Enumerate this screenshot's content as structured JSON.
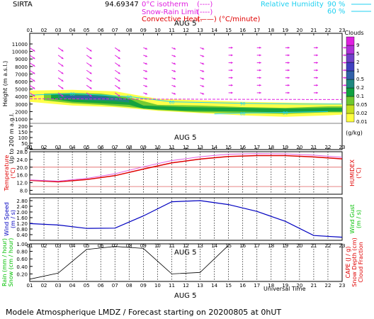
{
  "header": {
    "station": "SIRTA",
    "coords": "94.69347",
    "isotherm_label": "0°C isotherm",
    "isotherm_legend": "(----)",
    "snow_rain_label": "Snow-Rain Limit",
    "snow_rain_legend": "(----)",
    "convective_label": "Convective Heat.",
    "convective_legend": "(——) (°C/minute)",
    "rh_label": "Relative Humidity",
    "rh_90": "90 %",
    "rh_60": "60 %"
  },
  "hours": [
    "01",
    "02",
    "03",
    "04",
    "05",
    "06",
    "07",
    "08",
    "09",
    "10",
    "11",
    "12",
    "13",
    "14",
    "15",
    "16",
    "17",
    "18",
    "19",
    "20",
    "21",
    "22",
    "23"
  ],
  "date_label": "AUG  5",
  "footer": {
    "universal_time": "Universal Time",
    "forecast": "Modele Atmospherique LMDZ / Forecast starting on 20200805 at 0hUT"
  },
  "colors": {
    "magenta": "#e020e0",
    "cyan": "#20d0f0",
    "red": "#e00000",
    "blue": "#0000c0",
    "green": "#00c000"
  },
  "chart_data": [
    {
      "type": "heatmap",
      "name": "clouds",
      "ylabel": "Height  (m a.s.l.)",
      "ylabel_small": "Up to 200 m a.g.l.",
      "y_ticks_upper": [
        1000,
        2000,
        3000,
        4000,
        5000,
        6000,
        7000,
        8000,
        9000,
        10000,
        11000
      ],
      "y_ticks_lower": [
        0,
        50,
        100,
        150,
        200
      ],
      "ylim": [
        0,
        11800
      ],
      "colorbar": {
        "title": "Clouds",
        "unit": "(g/kg)",
        "levels": [
          "0.01",
          "0.02",
          "0.05",
          "0.1",
          "0.2",
          "0.5",
          "1",
          "2",
          "5",
          "9"
        ],
        "colors": [
          "#ffff40",
          "#c8e020",
          "#70c830",
          "#10a040",
          "#208880",
          "#3060a8",
          "#4040c0",
          "#7040c8",
          "#b030d8",
          "#e020e0"
        ]
      },
      "cloud_layers": [
        {
          "level": 0,
          "x": [
            1,
            4,
            7,
            10,
            13,
            16,
            19,
            22,
            23
          ],
          "top": [
            4800,
            4900,
            4700,
            3700,
            3500,
            3300,
            3200,
            3100,
            3100
          ],
          "bottom": [
            3300,
            2800,
            2600,
            2100,
            1800,
            1500,
            1300,
            1500,
            1600
          ]
        },
        {
          "level": 2,
          "x": [
            2,
            4,
            6,
            8,
            10,
            13,
            16,
            19,
            22,
            23
          ],
          "top": [
            4400,
            4500,
            4400,
            3900,
            2900,
            2800,
            2600,
            2500,
            2700,
            2700
          ],
          "bottom": [
            3500,
            3100,
            2900,
            2600,
            2200,
            1900,
            1800,
            1700,
            1900,
            1900
          ]
        },
        {
          "level": 3,
          "x": [
            2.5,
            4,
            6,
            8,
            9,
            12,
            16,
            19,
            22,
            23
          ],
          "top": [
            4300,
            4300,
            4200,
            3700,
            2800,
            2600,
            2500,
            2400,
            2500,
            2500
          ],
          "bottom": [
            3700,
            3300,
            3100,
            2900,
            2400,
            2100,
            2000,
            1900,
            2000,
            2000
          ]
        },
        {
          "level": 4,
          "x": [
            3,
            5,
            7,
            8
          ],
          "top": [
            4200,
            4200,
            4000,
            3500
          ],
          "bottom": [
            3800,
            3500,
            3400,
            3200
          ]
        },
        {
          "level": 5,
          "x": [
            3.5,
            5,
            6.5
          ],
          "top": [
            4100,
            4100,
            3900
          ],
          "bottom": [
            3800,
            3700,
            3600
          ]
        }
      ],
      "isotherm_0c": {
        "x": [
          1,
          23
        ],
        "y": [
          3700,
          3600
        ]
      },
      "rh_contours": [
        {
          "x": [
            1,
            4,
            8,
            11,
            16,
            20,
            23
          ],
          "y": [
            4200,
            4400,
            4000,
            3300,
            3100,
            3000,
            3000
          ],
          "labels": [
            "60",
            "60",
            "60",
            "90"
          ]
        },
        {
          "x": [
            14,
            16,
            19,
            22
          ],
          "y": [
            1700,
            1800,
            1900,
            2000
          ],
          "labels": [
            "60",
            "90"
          ]
        }
      ],
      "wind_arrows_note": "magenta wind barbs at each hour and height"
    },
    {
      "type": "line",
      "name": "temperature",
      "ylabel": "Temperature\n(°C)",
      "ylabel_right": "HUMIDEX\n(°C)",
      "y_ticks": [
        "8.0",
        "12.0",
        "16.0",
        "20.0",
        "24.0",
        "28.0"
      ],
      "ylim": [
        6,
        28
      ],
      "x": [
        1,
        3,
        5,
        7,
        9,
        11,
        13,
        15,
        17,
        19,
        21,
        23
      ],
      "series": [
        {
          "color": "#e00000",
          "values": [
            13.2,
            12.4,
            13.6,
            15.6,
            19.0,
            22.2,
            24.2,
            25.5,
            26.0,
            26.0,
            25.3,
            24.3
          ]
        },
        {
          "color": "#e060e0",
          "values": [
            13.4,
            12.8,
            14.2,
            16.6,
            20.2,
            23.4,
            25.4,
            26.7,
            27.0,
            26.9,
            26.2,
            25.1
          ]
        }
      ],
      "ref_lines": [
        10,
        20
      ]
    },
    {
      "type": "line",
      "name": "wind",
      "ylabel": "Wind Speed\n(m / s)",
      "ylabel_right": "Wind Gust\n(m / s)",
      "y_ticks": [
        "0.40",
        "0.80",
        "1.20",
        "1.60",
        "2.00",
        "2.40",
        "2.80"
      ],
      "ylim": [
        0,
        3.0
      ],
      "x": [
        1,
        3,
        5,
        7,
        9,
        11,
        13,
        15,
        17,
        19,
        21,
        23
      ],
      "values": [
        1.18,
        1.08,
        0.84,
        0.86,
        1.72,
        2.72,
        2.8,
        2.52,
        2.04,
        1.34,
        0.34,
        0.22
      ]
    },
    {
      "type": "line",
      "name": "cloud_fraction",
      "ylabel": "Rain  (mm / hour)\nSnow (cm / hour)",
      "ylabel_right": "CAPE (J / g)\nSnow Depth (cm)\nCloud Fraction",
      "y_ticks": [
        "0.20",
        "0.40",
        "0.60",
        "0.80",
        "1.00"
      ],
      "ylim": [
        0,
        1.0
      ],
      "x": [
        1,
        3,
        5,
        7,
        9,
        11,
        13,
        15
      ],
      "values": [
        0.06,
        0.22,
        0.85,
        0.93,
        0.88,
        0.2,
        0.24,
        0.96
      ]
    }
  ]
}
